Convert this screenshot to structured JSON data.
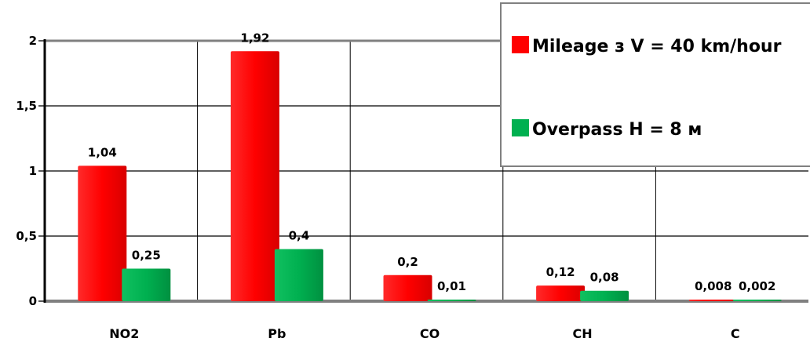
{
  "chart_data": {
    "type": "bar",
    "categories": [
      "NO2",
      "Pb",
      "CO",
      "CH",
      "C"
    ],
    "series": [
      {
        "name": "Mileage з V = 40 km/hour",
        "color": "#ff0000",
        "values": [
          1.04,
          1.92,
          0.2,
          0.12,
          0.008
        ],
        "labels": [
          "1,04",
          "1,92",
          "0,2",
          "0,12",
          "0,008"
        ]
      },
      {
        "name": "Overpass H = 8 м",
        "color": "#00b050",
        "values": [
          0.25,
          0.4,
          0.01,
          0.08,
          0.002
        ],
        "labels": [
          "0,25",
          "0,4",
          "0,01",
          "0,08",
          "0,002"
        ]
      }
    ],
    "yticks": [
      {
        "value": 0,
        "label": "0"
      },
      {
        "value": 0.5,
        "label": "0,5"
      },
      {
        "value": 1,
        "label": "1"
      },
      {
        "value": 1.5,
        "label": "1,5"
      },
      {
        "value": 2,
        "label": "2"
      }
    ],
    "ylim": [
      0,
      2
    ],
    "title": "",
    "xlabel": "",
    "ylabel": "",
    "grid": true,
    "legend_position": "top-right"
  }
}
